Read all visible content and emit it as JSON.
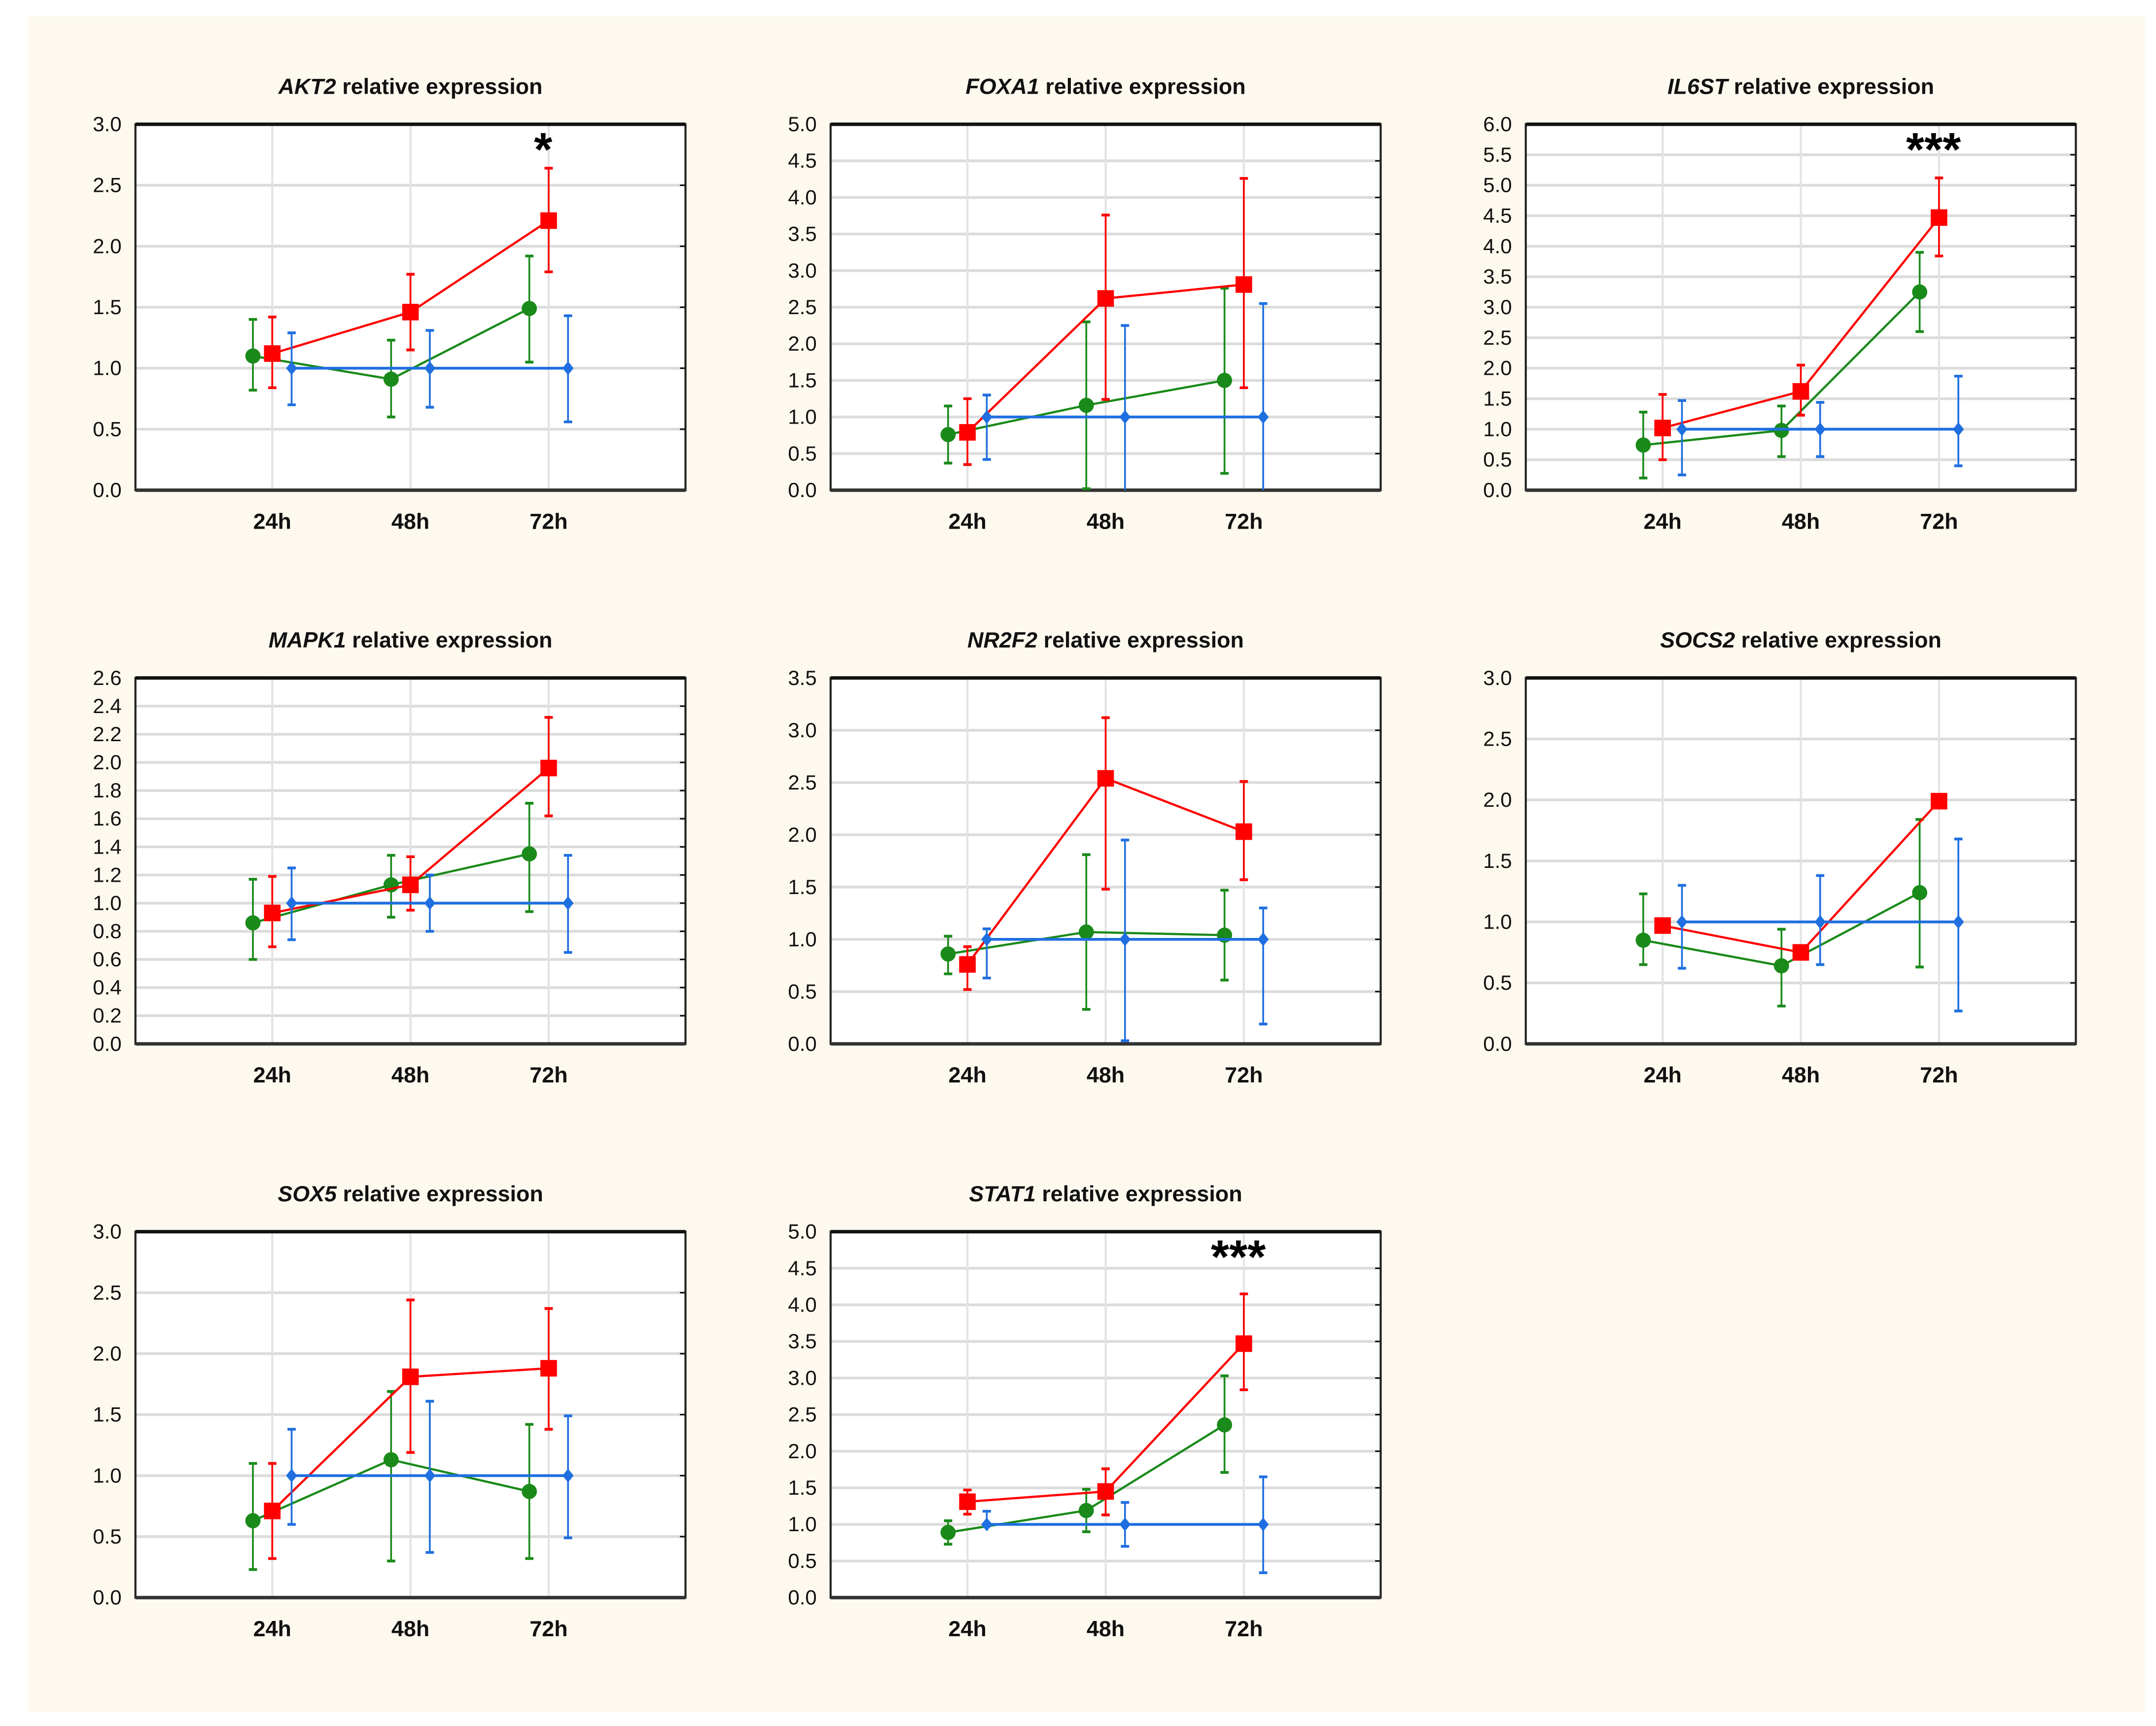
{
  "chart_data": [
    {
      "type": "line",
      "gene": "AKT2",
      "title_suffix": " relative expression",
      "categories": [
        "24h",
        "48h",
        "72h"
      ],
      "ylim": [
        0,
        3.0
      ],
      "ystep": 0.5,
      "yticks": [
        "0.0",
        "0.5",
        "1.0",
        "1.5",
        "2.0",
        "2.5",
        "3.0"
      ],
      "annotation": "*",
      "series": [
        {
          "name": "green",
          "color": "#1a8a1a",
          "marker": "circle",
          "values": [
            1.1,
            0.91,
            1.49
          ],
          "err": [
            [
              0.82,
              1.4
            ],
            [
              0.6,
              1.23
            ],
            [
              1.05,
              1.92
            ]
          ]
        },
        {
          "name": "red",
          "color": "#ff0000",
          "marker": "square",
          "values": [
            1.12,
            1.46,
            2.21
          ],
          "err": [
            [
              0.84,
              1.42
            ],
            [
              1.15,
              1.77
            ],
            [
              1.79,
              2.64
            ]
          ]
        },
        {
          "name": "blue",
          "color": "#1f6fe0",
          "marker": "diamond",
          "values": [
            1.0,
            1.0,
            1.0
          ],
          "err": [
            [
              0.7,
              1.29
            ],
            [
              0.68,
              1.31
            ],
            [
              0.56,
              1.43
            ]
          ]
        }
      ]
    },
    {
      "type": "line",
      "gene": "FOXA1",
      "title_suffix": " relative expression",
      "categories": [
        "24h",
        "48h",
        "72h"
      ],
      "ylim": [
        0,
        5.0
      ],
      "ystep": 0.5,
      "yticks": [
        "0.0",
        "0.5",
        "1.0",
        "1.5",
        "2.0",
        "2.5",
        "3.0",
        "3.5",
        "4.0",
        "4.5",
        "5.0"
      ],
      "annotation": "",
      "series": [
        {
          "name": "green",
          "color": "#1a8a1a",
          "marker": "circle",
          "values": [
            0.76,
            1.16,
            1.5
          ],
          "err": [
            [
              0.37,
              1.15
            ],
            [
              0.02,
              2.3
            ],
            [
              0.23,
              2.76
            ]
          ]
        },
        {
          "name": "red",
          "color": "#ff0000",
          "marker": "square",
          "values": [
            0.79,
            2.62,
            2.81
          ],
          "err": [
            [
              0.35,
              1.25
            ],
            [
              1.24,
              3.76
            ],
            [
              1.4,
              4.26
            ]
          ]
        },
        {
          "name": "blue",
          "color": "#1f6fe0",
          "marker": "diamond",
          "values": [
            1.0,
            1.0,
            1.0
          ],
          "err": [
            [
              0.42,
              1.3
            ],
            [
              0.0,
              2.25
            ],
            [
              0.0,
              2.55
            ]
          ]
        }
      ]
    },
    {
      "type": "line",
      "gene": "IL6ST",
      "title_suffix": " relative expression",
      "categories": [
        "24h",
        "48h",
        "72h"
      ],
      "ylim": [
        0,
        6.0
      ],
      "ystep": 0.5,
      "yticks": [
        "0.0",
        "0.5",
        "1.0",
        "1.5",
        "2.0",
        "2.5",
        "3.0",
        "3.5",
        "4.0",
        "4.5",
        "5.0",
        "5.5",
        "6.0"
      ],
      "annotation": "***",
      "series": [
        {
          "name": "green",
          "color": "#1a8a1a",
          "marker": "circle",
          "values": [
            0.74,
            0.98,
            3.25
          ],
          "err": [
            [
              0.2,
              1.28
            ],
            [
              0.55,
              1.38
            ],
            [
              2.6,
              3.9
            ]
          ]
        },
        {
          "name": "red",
          "color": "#ff0000",
          "marker": "square",
          "values": [
            1.02,
            1.62,
            4.47
          ],
          "err": [
            [
              0.5,
              1.57
            ],
            [
              1.23,
              2.05
            ],
            [
              3.84,
              5.12
            ]
          ]
        },
        {
          "name": "blue",
          "color": "#1f6fe0",
          "marker": "diamond",
          "values": [
            1.0,
            1.0,
            1.0
          ],
          "err": [
            [
              0.25,
              1.47
            ],
            [
              0.55,
              1.44
            ],
            [
              0.4,
              1.87
            ]
          ]
        }
      ]
    },
    {
      "type": "line",
      "gene": "MAPK1",
      "title_suffix": " relative expression",
      "categories": [
        "24h",
        "48h",
        "72h"
      ],
      "ylim": [
        0,
        2.6
      ],
      "ystep": 0.2,
      "yticks": [
        "0.0",
        "0.2",
        "0.4",
        "0.6",
        "0.8",
        "1.0",
        "1.2",
        "1.4",
        "1.6",
        "1.8",
        "2.0",
        "2.2",
        "2.4",
        "2.6"
      ],
      "annotation": "",
      "series": [
        {
          "name": "green",
          "color": "#1a8a1a",
          "marker": "circle",
          "values": [
            0.86,
            1.13,
            1.35
          ],
          "err": [
            [
              0.6,
              1.17
            ],
            [
              0.9,
              1.34
            ],
            [
              0.94,
              1.71
            ]
          ]
        },
        {
          "name": "red",
          "color": "#ff0000",
          "marker": "square",
          "values": [
            0.93,
            1.13,
            1.96
          ],
          "err": [
            [
              0.69,
              1.19
            ],
            [
              0.95,
              1.33
            ],
            [
              1.62,
              2.32
            ]
          ]
        },
        {
          "name": "blue",
          "color": "#1f6fe0",
          "marker": "diamond",
          "values": [
            1.0,
            1.0,
            1.0
          ],
          "err": [
            [
              0.74,
              1.25
            ],
            [
              0.8,
              1.2
            ],
            [
              0.65,
              1.34
            ]
          ]
        }
      ]
    },
    {
      "type": "line",
      "gene": "NR2F2",
      "title_suffix": " relative expression",
      "categories": [
        "24h",
        "48h",
        "72h"
      ],
      "ylim": [
        0,
        3.5
      ],
      "ystep": 0.5,
      "yticks": [
        "0.0",
        "0.5",
        "1.0",
        "1.5",
        "2.0",
        "2.5",
        "3.0",
        "3.5"
      ],
      "annotation": "",
      "series": [
        {
          "name": "green",
          "color": "#1a8a1a",
          "marker": "circle",
          "values": [
            0.86,
            1.07,
            1.04
          ],
          "err": [
            [
              0.67,
              1.03
            ],
            [
              0.33,
              1.81
            ],
            [
              0.61,
              1.47
            ]
          ]
        },
        {
          "name": "red",
          "color": "#ff0000",
          "marker": "square",
          "values": [
            0.76,
            2.54,
            2.03
          ],
          "err": [
            [
              0.52,
              0.93
            ],
            [
              1.48,
              3.12
            ],
            [
              1.57,
              2.51
            ]
          ]
        },
        {
          "name": "blue",
          "color": "#1f6fe0",
          "marker": "diamond",
          "values": [
            1.0,
            1.0,
            1.0
          ],
          "err": [
            [
              0.63,
              1.1
            ],
            [
              0.03,
              1.95
            ],
            [
              0.19,
              1.3
            ]
          ]
        }
      ]
    },
    {
      "type": "line",
      "gene": "SOCS2",
      "title_suffix": " relative expression",
      "categories": [
        "24h",
        "48h",
        "72h"
      ],
      "ylim": [
        0,
        3.0
      ],
      "ystep": 0.5,
      "yticks": [
        "0.0",
        "0.5",
        "1.0",
        "1.5",
        "2.0",
        "2.5",
        "3.0"
      ],
      "annotation": "",
      "series": [
        {
          "name": "green",
          "color": "#1a8a1a",
          "marker": "circle",
          "values": [
            0.85,
            0.64,
            1.24
          ],
          "err": [
            [
              0.65,
              1.23
            ],
            [
              0.31,
              0.94
            ],
            [
              0.63,
              1.84
            ]
          ]
        },
        {
          "name": "red",
          "color": "#ff0000",
          "marker": "square",
          "values": [
            0.97,
            0.75,
            1.99
          ],
          "err": [
            [
              0.95,
              0.99
            ],
            [
              0.73,
              0.77
            ],
            [
              1.97,
              2.01
            ]
          ]
        },
        {
          "name": "blue",
          "color": "#1f6fe0",
          "marker": "diamond",
          "values": [
            1.0,
            1.0,
            1.0
          ],
          "err": [
            [
              0.62,
              1.3
            ],
            [
              0.65,
              1.38
            ],
            [
              0.27,
              1.68
            ]
          ]
        }
      ]
    },
    {
      "type": "line",
      "gene": "SOX5",
      "title_suffix": " relative expression",
      "categories": [
        "24h",
        "48h",
        "72h"
      ],
      "ylim": [
        0,
        3.0
      ],
      "ystep": 0.5,
      "yticks": [
        "0.0",
        "0.5",
        "1.0",
        "1.5",
        "2.0",
        "2.5",
        "3.0"
      ],
      "annotation": "",
      "series": [
        {
          "name": "green",
          "color": "#1a8a1a",
          "marker": "circle",
          "values": [
            0.63,
            1.13,
            0.87
          ],
          "err": [
            [
              0.23,
              1.1
            ],
            [
              0.3,
              1.69
            ],
            [
              0.32,
              1.42
            ]
          ]
        },
        {
          "name": "red",
          "color": "#ff0000",
          "marker": "square",
          "values": [
            0.71,
            1.81,
            1.88
          ],
          "err": [
            [
              0.32,
              1.1
            ],
            [
              1.19,
              2.44
            ],
            [
              1.38,
              2.37
            ]
          ]
        },
        {
          "name": "blue",
          "color": "#1f6fe0",
          "marker": "diamond",
          "values": [
            1.0,
            1.0,
            1.0
          ],
          "err": [
            [
              0.6,
              1.38
            ],
            [
              0.37,
              1.61
            ],
            [
              0.49,
              1.49
            ]
          ]
        }
      ]
    },
    {
      "type": "line",
      "gene": "STAT1",
      "title_suffix": " relative expression",
      "categories": [
        "24h",
        "48h",
        "72h"
      ],
      "ylim": [
        0,
        5.0
      ],
      "ystep": 0.5,
      "yticks": [
        "0.0",
        "0.5",
        "1.0",
        "1.5",
        "2.0",
        "2.5",
        "3.0",
        "3.5",
        "4.0",
        "4.5",
        "5.0"
      ],
      "annotation": "***",
      "series": [
        {
          "name": "green",
          "color": "#1a8a1a",
          "marker": "circle",
          "values": [
            0.89,
            1.19,
            2.36
          ],
          "err": [
            [
              0.73,
              1.05
            ],
            [
              0.9,
              1.48
            ],
            [
              1.71,
              3.03
            ]
          ]
        },
        {
          "name": "red",
          "color": "#ff0000",
          "marker": "square",
          "values": [
            1.31,
            1.45,
            3.47
          ],
          "err": [
            [
              1.14,
              1.47
            ],
            [
              1.13,
              1.76
            ],
            [
              2.84,
              4.15
            ]
          ]
        },
        {
          "name": "blue",
          "color": "#1f6fe0",
          "marker": "diamond",
          "values": [
            1.0,
            1.0,
            1.0
          ],
          "err": [
            [
              0.98,
              1.18
            ],
            [
              0.7,
              1.3
            ],
            [
              0.34,
              1.65
            ]
          ]
        }
      ]
    }
  ]
}
